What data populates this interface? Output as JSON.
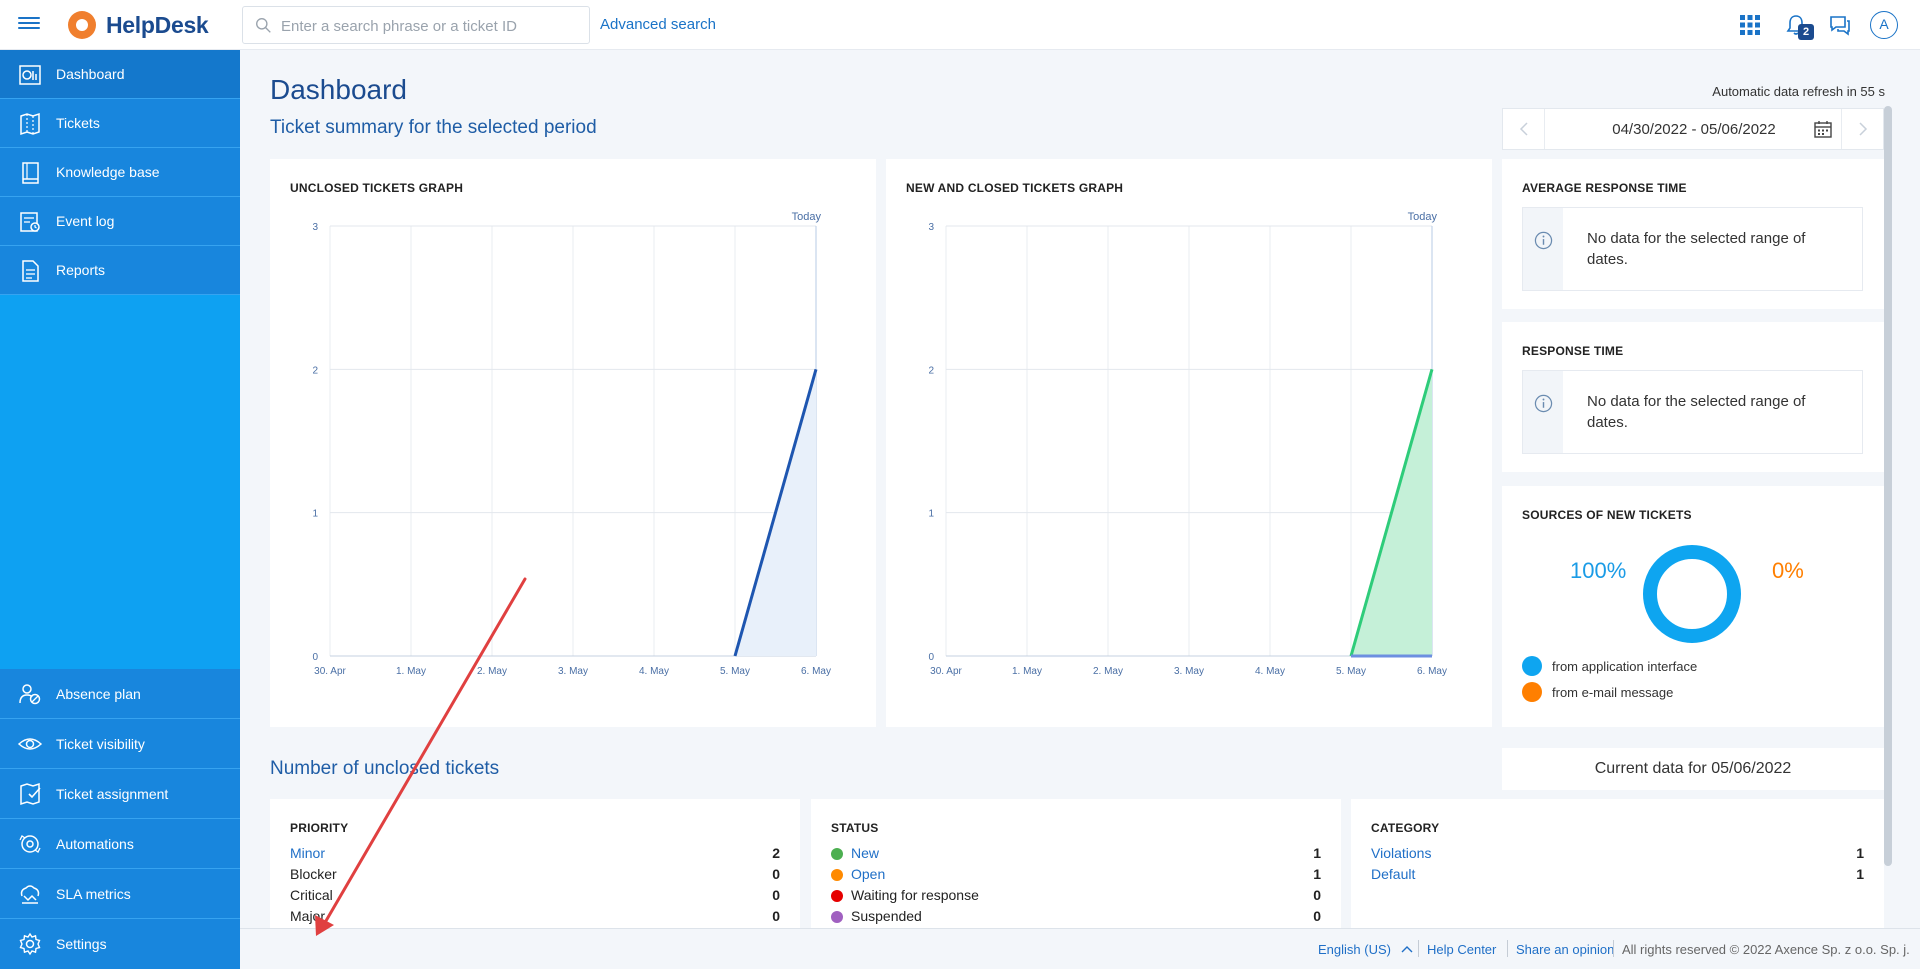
{
  "app": {
    "name": "HelpDesk",
    "search_placeholder": "Enter a search phrase or a ticket ID",
    "advanced_search": "Advanced search",
    "notification_count": "2",
    "avatar_letter": "A"
  },
  "sidebar": {
    "top_items": [
      {
        "label": "Dashboard",
        "icon": "dashboard-icon"
      },
      {
        "label": "Tickets",
        "icon": "tickets-icon"
      },
      {
        "label": "Knowledge base",
        "icon": "book-icon"
      },
      {
        "label": "Event log",
        "icon": "event-log-icon"
      },
      {
        "label": "Reports",
        "icon": "reports-icon"
      }
    ],
    "bottom_items": [
      {
        "label": "Absence plan",
        "icon": "absence-icon"
      },
      {
        "label": "Ticket visibility",
        "icon": "eye-icon"
      },
      {
        "label": "Ticket assignment",
        "icon": "assignment-icon"
      },
      {
        "label": "Automations",
        "icon": "automation-icon"
      },
      {
        "label": "SLA metrics",
        "icon": "sla-icon"
      },
      {
        "label": "Settings",
        "icon": "gear-icon"
      }
    ]
  },
  "main": {
    "page_title": "Dashboard",
    "auto_refresh": "Automatic data refresh in 55 s",
    "summary_title": "Ticket summary for the selected period",
    "date_range": "04/30/2022 - 05/06/2022",
    "unclosed_title": "Number of unclosed tickets",
    "current_data": "Current data for 05/06/2022"
  },
  "charts": {
    "unclosed": {
      "title": "UNCLOSED TICKETS GRAPH",
      "today": "Today"
    },
    "new_closed": {
      "title": "NEW AND CLOSED TICKETS GRAPH",
      "today": "Today"
    }
  },
  "chart_data": [
    {
      "type": "area",
      "title": "UNCLOSED TICKETS GRAPH",
      "categories": [
        "30. Apr",
        "1. May",
        "2. May",
        "3. May",
        "4. May",
        "5. May",
        "6. May"
      ],
      "ylim": [
        0,
        3
      ],
      "yticks": [
        "0",
        "1",
        "2",
        "3"
      ],
      "series": [
        {
          "values": [
            null,
            null,
            null,
            null,
            null,
            0,
            2
          ],
          "color": "#1e56b0"
        }
      ],
      "annotation": "Today",
      "grid": true
    },
    {
      "type": "area",
      "title": "NEW AND CLOSED TICKETS GRAPH",
      "categories": [
        "30. Apr",
        "1. May",
        "2. May",
        "3. May",
        "4. May",
        "5. May",
        "6. May"
      ],
      "ylim": [
        0,
        3
      ],
      "yticks": [
        "0",
        "1",
        "2",
        "3"
      ],
      "series": [
        {
          "values": [
            null,
            null,
            null,
            null,
            null,
            0,
            2
          ],
          "color": "#2ecc7a"
        },
        {
          "values": [
            null,
            null,
            null,
            null,
            null,
            0,
            0
          ],
          "color": "#6d8fe0"
        }
      ],
      "annotation": "Today",
      "grid": true
    },
    {
      "type": "pie",
      "title": "SOURCES OF NEW TICKETS",
      "labels": [
        "from application interface",
        "from e-mail message"
      ],
      "values": [
        100,
        0
      ],
      "pct_labels": [
        "100%",
        "0%"
      ],
      "colors": [
        "#0ea5f0",
        "#ff7f00"
      ]
    }
  ],
  "right_panel": {
    "avg_response": {
      "title": "AVERAGE RESPONSE TIME",
      "text": "No data for the selected range of dates."
    },
    "response_time": {
      "title": "RESPONSE TIME",
      "text": "No data for the selected range of dates."
    },
    "sources": {
      "title": "SOURCES OF NEW TICKETS"
    }
  },
  "priority": {
    "title": "PRIORITY",
    "rows": [
      {
        "label": "Minor",
        "value": "2",
        "link": true
      },
      {
        "label": "Blocker",
        "value": "0",
        "link": false
      },
      {
        "label": "Critical",
        "value": "0",
        "link": false
      },
      {
        "label": "Major",
        "value": "0",
        "link": false
      }
    ]
  },
  "status": {
    "title": "STATUS",
    "rows": [
      {
        "label": "New",
        "value": "1",
        "color": "#4caf50",
        "link": true
      },
      {
        "label": "Open",
        "value": "1",
        "color": "#ff8a00",
        "link": true
      },
      {
        "label": "Waiting for response",
        "value": "0",
        "color": "#e60000",
        "link": false
      },
      {
        "label": "Suspended",
        "value": "0",
        "color": "#a060c0",
        "link": false
      }
    ]
  },
  "category": {
    "title": "CATEGORY",
    "rows": [
      {
        "label": "Violations",
        "value": "1",
        "link": true
      },
      {
        "label": "Default",
        "value": "1",
        "link": true
      }
    ]
  },
  "footer": {
    "language": "English (US)",
    "help_center": "Help Center",
    "share_opinion": "Share an opinion",
    "copyright": "All rights reserved © 2022 Axence Sp. z o.o. Sp. j."
  },
  "colors": {
    "brand": "#1b4b8f",
    "link": "#1f6fc7",
    "sidebar": "#0ea1f2",
    "sidebar_item": "#1886dd",
    "annotation_arrow": "#e04040"
  }
}
